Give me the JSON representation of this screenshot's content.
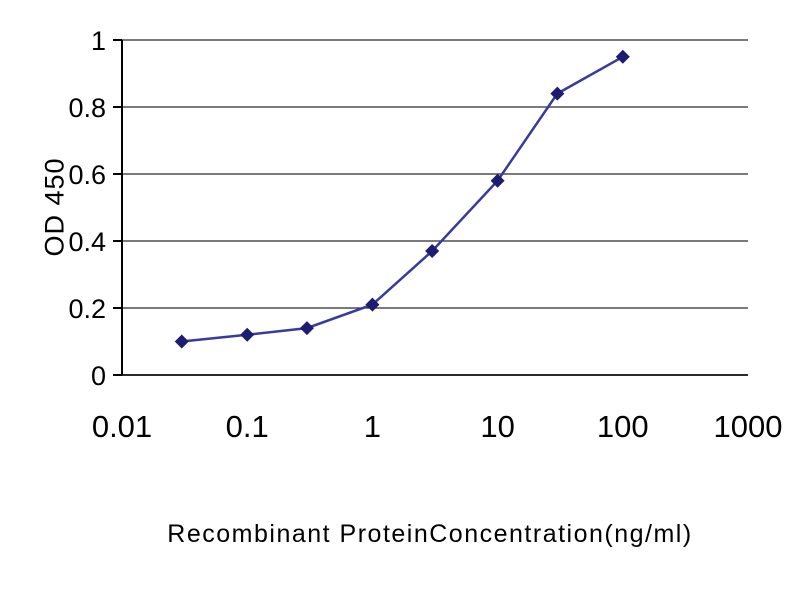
{
  "chart_data": {
    "type": "line",
    "title": "",
    "xlabel": "Recombinant ProteinConcentration(ng/ml)",
    "ylabel": "OD 450",
    "x_scale": "log",
    "xlim": [
      0.01,
      1000
    ],
    "ylim": [
      0,
      1
    ],
    "x_ticks": [
      0.01,
      0.1,
      1,
      10,
      100,
      1000
    ],
    "x_tick_labels": [
      "0.01",
      "0.1",
      "1",
      "10",
      "100",
      "1000"
    ],
    "y_ticks": [
      0,
      0.2,
      0.4,
      0.6,
      0.8,
      1
    ],
    "y_tick_labels": [
      "0",
      "0.2",
      "0.4",
      "0.6",
      "0.8",
      "1"
    ],
    "series": [
      {
        "x": [
          0.03,
          0.1,
          0.3,
          1,
          3,
          10,
          30,
          100
        ],
        "y": [
          0.1,
          0.12,
          0.14,
          0.21,
          0.37,
          0.58,
          0.84,
          0.95
        ],
        "line_color": "#3a3a9c",
        "marker": "diamond",
        "marker_color": "#1c1c72"
      }
    ],
    "grid": "horizontal",
    "grid_color": "#2b2b2b",
    "axis_color": "#000000",
    "background": "#ffffff",
    "legend": "none"
  }
}
